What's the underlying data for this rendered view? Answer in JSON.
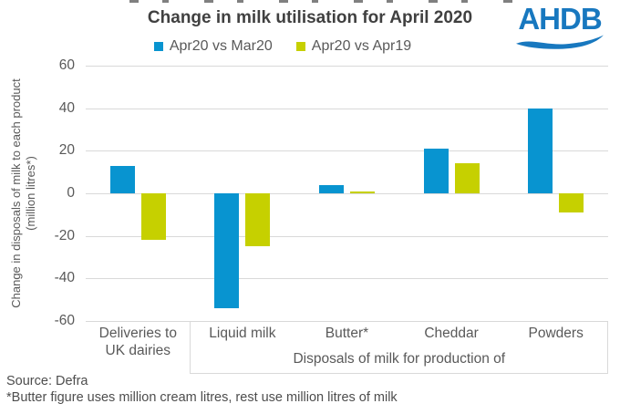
{
  "header": {
    "title": "Change in milk utilisation for April 2020",
    "logo_text": "AHDB"
  },
  "legend": [
    {
      "label": "Apr20 vs Mar20",
      "color": "#0894d0"
    },
    {
      "label": "Apr20 vs Apr19",
      "color": "#c6d000"
    }
  ],
  "chart_data": {
    "type": "bar",
    "title": "Change in milk utilisation for April 2020",
    "categories": [
      "Deliveries to\nUK dairies",
      "Liquid milk",
      "Butter*",
      "Cheddar",
      "Powders"
    ],
    "series": [
      {
        "name": "Apr20 vs Mar20",
        "color": "#0894d0",
        "values": [
          13,
          -54,
          4,
          21,
          40
        ]
      },
      {
        "name": "Apr20 vs Apr19",
        "color": "#c6d000",
        "values": [
          -22,
          -25,
          1,
          14,
          -9
        ]
      }
    ],
    "ylabel_line1": "Change in disposals of milk to each product",
    "ylabel_line2": "(million litres*)",
    "ylim": [
      -60,
      60
    ],
    "yticks": [
      60,
      40,
      20,
      0,
      -20,
      -40,
      -60
    ],
    "x_group_label": "Disposals of milk for production of",
    "x_group_span": [
      1,
      4
    ],
    "grid": true,
    "legend_position": "top",
    "gridline_color": "#d9d9d9"
  },
  "footer": {
    "source": "Source: Defra",
    "footnote": "*Butter figure uses million cream litres, rest use million litres of milk"
  }
}
